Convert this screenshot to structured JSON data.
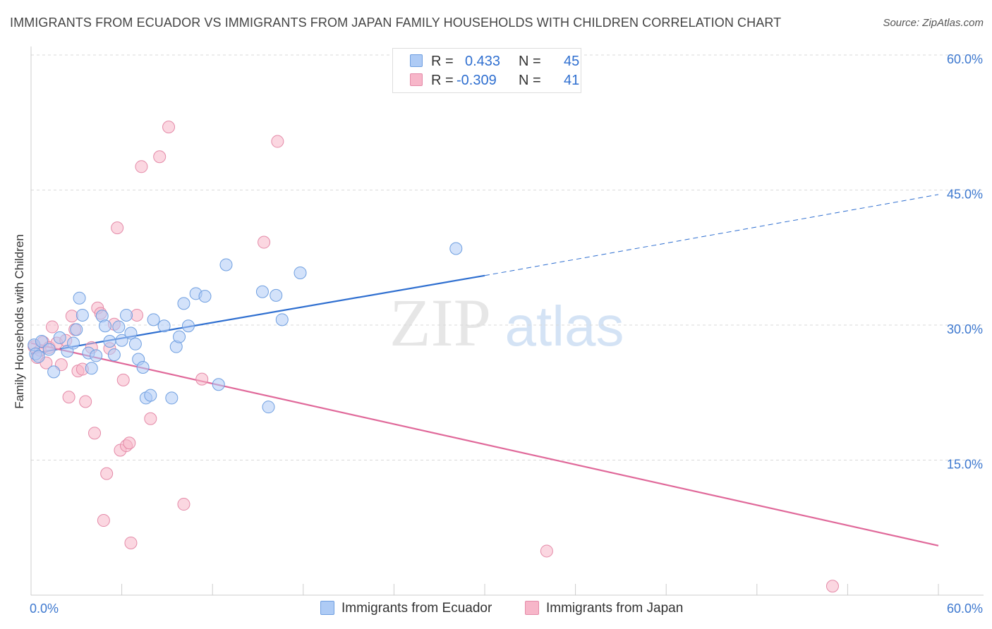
{
  "header": {
    "title": "IMMIGRANTS FROM ECUADOR VS IMMIGRANTS FROM JAPAN FAMILY HOUSEHOLDS WITH CHILDREN CORRELATION CHART",
    "source": "Source: ZipAtlas.com"
  },
  "watermark": {
    "zip": "ZIP",
    "atlas": "atlas"
  },
  "stats_box": {
    "rows": [
      {
        "r_label": "R =",
        "r_value": "0.433",
        "n_label": "N =",
        "n_value": "45",
        "color": "#aecbf5"
      },
      {
        "r_label": "R =",
        "r_value": "-0.309",
        "n_label": "N =",
        "n_value": "41",
        "color": "#f7b6c9"
      }
    ]
  },
  "legend": {
    "items": [
      {
        "label": "Immigrants from Ecuador",
        "color": "#aecbf5"
      },
      {
        "label": "Immigrants from Japan",
        "color": "#f7b6c9"
      }
    ]
  },
  "colors": {
    "ecuador_fill": "#aecbf5",
    "ecuador_stroke": "#6f9fe0",
    "ecuador_line": "#2f6fd0",
    "japan_fill": "#f7b6c9",
    "japan_stroke": "#e48aa8",
    "japan_line": "#e0699a",
    "tick_label": "#3d78cf",
    "grid": "#d9d9d9"
  },
  "chart_data": {
    "type": "scatter",
    "title": "IMMIGRANTS FROM ECUADOR VS IMMIGRANTS FROM JAPAN FAMILY HOUSEHOLDS WITH CHILDREN CORRELATION CHART",
    "xlabel": "",
    "ylabel": "Family Households with Children",
    "xlim": [
      0,
      60
    ],
    "ylim": [
      0,
      60
    ],
    "x_tick_labels": [
      "0.0%",
      "60.0%"
    ],
    "y_ticks": [
      15,
      30,
      45,
      60
    ],
    "y_tick_labels": [
      "15.0%",
      "30.0%",
      "45.0%",
      "60.0%"
    ],
    "grid": true,
    "legend_position": "bottom-center",
    "series": [
      {
        "name": "Immigrants from Ecuador",
        "points": [
          [
            0.2,
            27.8
          ],
          [
            0.3,
            26.8
          ],
          [
            0.5,
            26.5
          ],
          [
            0.7,
            28.2
          ],
          [
            1.2,
            27.3
          ],
          [
            1.5,
            24.8
          ],
          [
            1.9,
            28.6
          ],
          [
            2.4,
            27.1
          ],
          [
            2.8,
            28.0
          ],
          [
            3.0,
            29.5
          ],
          [
            3.2,
            33.0
          ],
          [
            3.4,
            31.1
          ],
          [
            3.8,
            26.9
          ],
          [
            4.0,
            25.2
          ],
          [
            4.3,
            26.6
          ],
          [
            4.7,
            31.0
          ],
          [
            4.9,
            29.9
          ],
          [
            5.2,
            28.2
          ],
          [
            5.5,
            26.7
          ],
          [
            5.8,
            29.8
          ],
          [
            6.0,
            28.3
          ],
          [
            6.3,
            31.1
          ],
          [
            6.6,
            29.1
          ],
          [
            6.9,
            27.9
          ],
          [
            7.1,
            26.2
          ],
          [
            7.4,
            25.3
          ],
          [
            7.6,
            21.9
          ],
          [
            7.9,
            22.2
          ],
          [
            8.1,
            30.6
          ],
          [
            8.8,
            29.9
          ],
          [
            9.3,
            21.9
          ],
          [
            9.6,
            27.6
          ],
          [
            9.8,
            28.7
          ],
          [
            10.1,
            32.4
          ],
          [
            10.4,
            29.9
          ],
          [
            10.9,
            33.5
          ],
          [
            11.5,
            33.2
          ],
          [
            12.9,
            36.7
          ],
          [
            12.4,
            23.4
          ],
          [
            15.3,
            33.7
          ],
          [
            15.7,
            20.9
          ],
          [
            16.2,
            33.3
          ],
          [
            16.6,
            30.6
          ],
          [
            17.8,
            35.8
          ],
          [
            28.1,
            38.5
          ]
        ]
      },
      {
        "name": "Immigrants from Japan",
        "points": [
          [
            0.2,
            27.6
          ],
          [
            0.4,
            26.4
          ],
          [
            0.6,
            27.2
          ],
          [
            0.8,
            28.1
          ],
          [
            1.0,
            25.8
          ],
          [
            1.2,
            27.5
          ],
          [
            1.4,
            29.8
          ],
          [
            1.7,
            28.0
          ],
          [
            2.0,
            25.6
          ],
          [
            2.3,
            28.3
          ],
          [
            2.5,
            22.0
          ],
          [
            2.7,
            31.0
          ],
          [
            2.9,
            29.5
          ],
          [
            3.1,
            24.9
          ],
          [
            3.4,
            25.1
          ],
          [
            3.6,
            21.5
          ],
          [
            4.0,
            27.5
          ],
          [
            4.2,
            18.0
          ],
          [
            4.4,
            31.9
          ],
          [
            4.6,
            31.3
          ],
          [
            4.8,
            8.3
          ],
          [
            5.0,
            13.5
          ],
          [
            5.2,
            27.4
          ],
          [
            5.5,
            30.1
          ],
          [
            5.7,
            40.8
          ],
          [
            5.9,
            16.1
          ],
          [
            6.1,
            23.9
          ],
          [
            6.3,
            16.6
          ],
          [
            6.5,
            16.9
          ],
          [
            6.6,
            5.8
          ],
          [
            7.0,
            31.1
          ],
          [
            7.3,
            47.6
          ],
          [
            7.9,
            19.6
          ],
          [
            8.5,
            48.7
          ],
          [
            9.1,
            52.0
          ],
          [
            10.1,
            10.1
          ],
          [
            11.3,
            24.0
          ],
          [
            15.4,
            39.2
          ],
          [
            16.3,
            50.4
          ],
          [
            34.1,
            4.9
          ],
          [
            53.0,
            1.0
          ]
        ]
      }
    ],
    "trendlines": [
      {
        "name": "Immigrants from Ecuador",
        "x0": 0,
        "y0": 26.8,
        "x_solid_end": 30,
        "y_solid_end": 35.5,
        "x1": 60,
        "y1": 44.5
      },
      {
        "name": "Immigrants from Japan",
        "x0": 0,
        "y0": 28.0,
        "x1": 60,
        "y1": 5.5
      }
    ]
  }
}
